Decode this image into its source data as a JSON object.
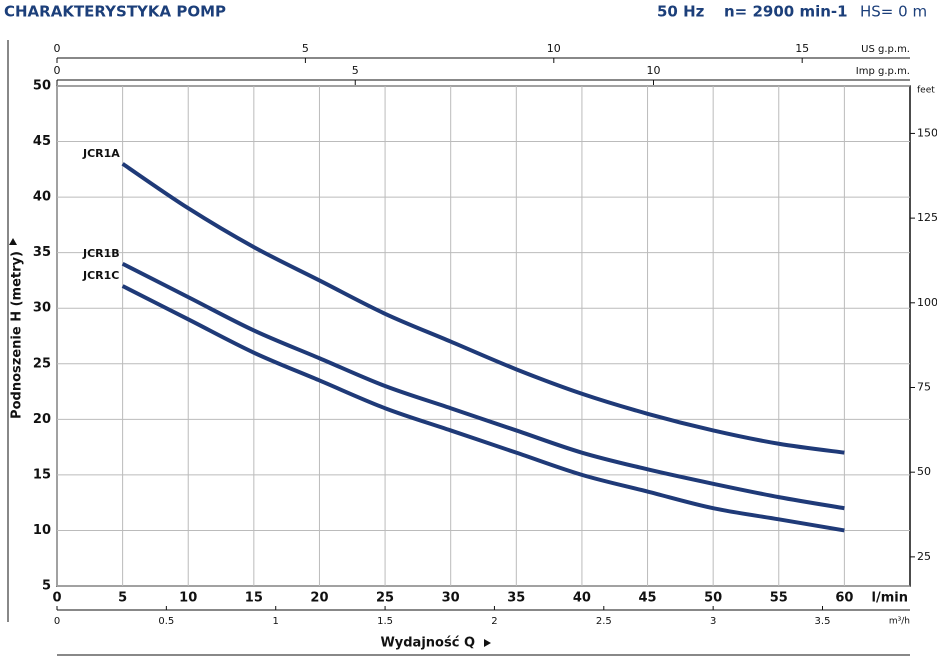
{
  "chart_data": {
    "type": "line",
    "title": "CHARAKTERYSTYKA POMP",
    "subtitle_parts": [
      "50 Hz",
      "n= 2900 min-1",
      "HS= 0 m"
    ],
    "x_label": "Wydajność Q",
    "x_unit": "l/min",
    "y_label": "Podnoszenie H (metry)",
    "x": [
      5,
      10,
      15,
      20,
      25,
      30,
      35,
      40,
      45,
      50,
      55,
      60
    ],
    "series": [
      {
        "name": "JCR1A",
        "color": "#1f3a78",
        "values": [
          43,
          39,
          35.5,
          32.5,
          29.5,
          27,
          24.5,
          22.3,
          20.5,
          19,
          17.8,
          17
        ]
      },
      {
        "name": "JCR1B",
        "color": "#1f3a78",
        "values": [
          34,
          31,
          28,
          25.5,
          23,
          21,
          19,
          17,
          15.5,
          14.2,
          13,
          12
        ]
      },
      {
        "name": "JCR1C",
        "color": "#1f3a78",
        "values": [
          32,
          29,
          26,
          23.5,
          21,
          19,
          17,
          15,
          13.5,
          12,
          11,
          10
        ]
      }
    ],
    "xlim": [
      0,
      65
    ],
    "xticks": [
      0,
      5,
      10,
      15,
      20,
      25,
      30,
      35,
      40,
      45,
      50,
      55,
      60
    ],
    "ylim": [
      5,
      50
    ],
    "yticks": [
      5,
      10,
      15,
      20,
      25,
      30,
      35,
      40,
      45,
      50
    ],
    "y2_label": "feet",
    "y2lim": [
      16.4,
      164
    ],
    "y2ticks": [
      25,
      50,
      75,
      100,
      125,
      150
    ],
    "top_axes": [
      {
        "label": "US g.p.m.",
        "lim": [
          0,
          17.17
        ],
        "ticks": [
          0,
          5,
          10,
          15
        ]
      },
      {
        "label": "Imp g.p.m.",
        "lim": [
          0,
          14.3
        ],
        "ticks": [
          0,
          5,
          10
        ]
      }
    ],
    "bottom_axis2": {
      "label": "m³/h",
      "lim": [
        0,
        3.9
      ],
      "ticks": [
        0,
        0.5,
        1,
        1.5,
        2,
        2.5,
        3,
        3.5
      ]
    },
    "grid": true
  }
}
